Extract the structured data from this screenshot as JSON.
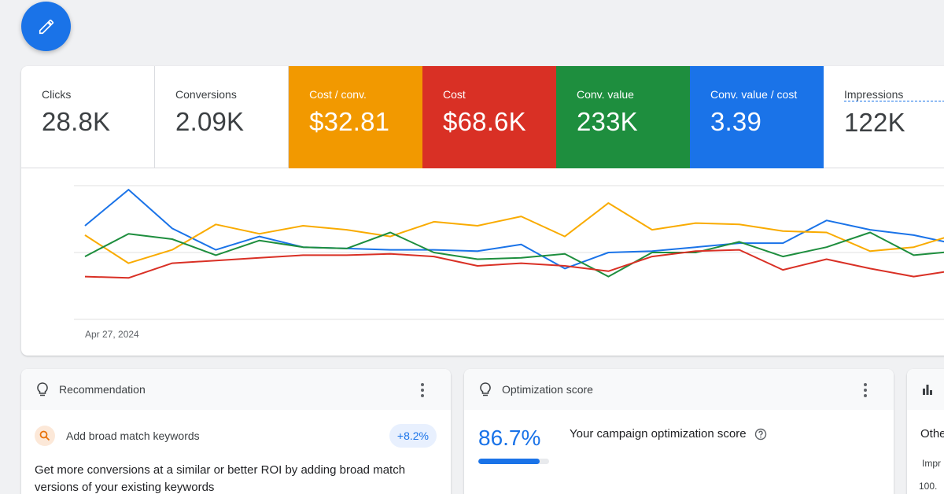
{
  "fab": {
    "icon": "pencil-icon"
  },
  "metrics": [
    {
      "label": "Clicks",
      "value": "28.8K",
      "color": ""
    },
    {
      "label": "Conversions",
      "value": "2.09K",
      "color": ""
    },
    {
      "label": "Cost / conv.",
      "value": "$32.81",
      "color": "#f29900"
    },
    {
      "label": "Cost",
      "value": "$68.6K",
      "color": "#d93025"
    },
    {
      "label": "Conv. value",
      "value": "233K",
      "color": "#1e8e3e"
    },
    {
      "label": "Conv. value / cost",
      "value": "3.39",
      "color": "#1a73e8"
    },
    {
      "label": "Impressions",
      "value": "122K",
      "color": ""
    }
  ],
  "chart_data": {
    "type": "line",
    "xlabel": "",
    "ylabel": "",
    "x_start_label": "Apr 27, 2024",
    "ylim": [
      0,
      100
    ],
    "grid": true,
    "series": [
      {
        "color": "#1a73e8",
        "values": [
          70,
          97,
          68,
          52,
          62,
          54,
          53,
          52,
          52,
          51,
          56,
          38,
          50,
          51,
          54,
          57,
          57,
          74,
          67,
          63,
          56
        ]
      },
      {
        "color": "#f9ab00",
        "values": [
          63,
          42,
          52,
          71,
          64,
          70,
          67,
          62,
          73,
          70,
          77,
          62,
          87,
          67,
          72,
          71,
          66,
          65,
          51,
          54,
          64
        ]
      },
      {
        "color": "#1e8e3e",
        "values": [
          47,
          64,
          60,
          48,
          59,
          54,
          53,
          65,
          50,
          45,
          46,
          49,
          32,
          50,
          50,
          58,
          47,
          54,
          65,
          48,
          51
        ]
      },
      {
        "color": "#d93025",
        "values": [
          32,
          31,
          42,
          44,
          46,
          48,
          48,
          49,
          47,
          40,
          42,
          40,
          36,
          47,
          51,
          52,
          37,
          45,
          38,
          32,
          37
        ]
      }
    ]
  },
  "cards": {
    "recommendation": {
      "icon": "lightbulb-icon",
      "title": "Recommendation",
      "item_icon": "search-icon",
      "item_title": "Add broad match keywords",
      "uplift": "+8.2%",
      "description": "Get more conversions at a similar or better ROI by adding broad match versions of your existing keywords"
    },
    "optimization": {
      "icon": "lightbulb-icon",
      "title": "Optimization score",
      "score": "86.7%",
      "score_fraction": 0.867,
      "text": "Your campaign optimization score",
      "help_icon": "help-circle-icon"
    },
    "third": {
      "icon": "bar-chart-icon",
      "title": "Othe",
      "sub": "Impr",
      "value": "100."
    }
  }
}
